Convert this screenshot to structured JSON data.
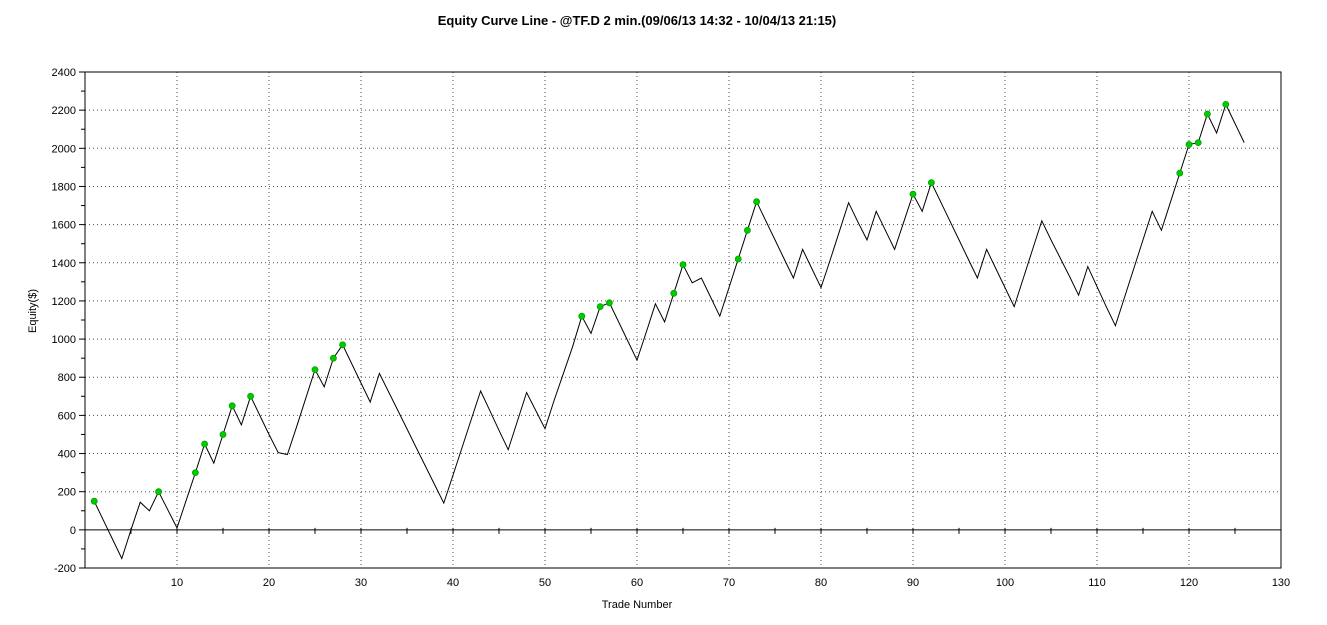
{
  "window": {
    "background": "#ffffff"
  },
  "chart_data": {
    "type": "line",
    "title": "Equity Curve Line - @TF.D 2 min.(09/06/13 14:32 - 10/04/13 21:15)",
    "xlabel": "Trade Number",
    "ylabel": "Equity($)",
    "xlim": [
      0,
      130
    ],
    "ylim": [
      -200,
      2400
    ],
    "x_ticks": [
      10,
      20,
      30,
      40,
      50,
      60,
      70,
      80,
      90,
      100,
      110,
      120,
      130
    ],
    "y_ticks": [
      2400,
      2200,
      2000,
      1800,
      1600,
      1400,
      1200,
      1000,
      800,
      600,
      400,
      200,
      0,
      -200
    ],
    "x_minor_tick_step": 5,
    "y_minor_tick_step": 100,
    "grid": true,
    "legend": false,
    "colors": {
      "line": "#000000",
      "marker_fill": "#00cc00",
      "marker_edge": "#00a000",
      "grid": "#4d4d4d",
      "axis": "#000000",
      "text": "#000000",
      "background": "#ffffff"
    },
    "series": [
      {
        "name": "equity",
        "first_trade": 1,
        "values": [
          150,
          50,
          -50,
          -150,
          0,
          145,
          100,
          200,
          105,
          10,
          155,
          300,
          450,
          350,
          500,
          650,
          550,
          700,
          600,
          500,
          405,
          395,
          540,
          690,
          840,
          750,
          900,
          970,
          870,
          770,
          670,
          820,
          723,
          626,
          529,
          431,
          334,
          237,
          140,
          287,
          434,
          581,
          728,
          625,
          522,
          420,
          570,
          720,
          625,
          530,
          680,
          820,
          960,
          1120,
          1030,
          1170,
          1190,
          1090,
          990,
          890,
          1035,
          1185,
          1090,
          1240,
          1390,
          1295,
          1320,
          1220,
          1120,
          1270,
          1420,
          1570,
          1720,
          1620,
          1520,
          1420,
          1320,
          1470,
          1370,
          1270,
          1415,
          1565,
          1715,
          1615,
          1520,
          1670,
          1570,
          1470,
          1615,
          1760,
          1670,
          1820,
          1720,
          1620,
          1520,
          1420,
          1320,
          1470,
          1370,
          1270,
          1170,
          1320,
          1470,
          1620,
          1520,
          1425,
          1330,
          1230,
          1380,
          1275,
          1170,
          1070,
          1220,
          1370,
          1520,
          1670,
          1570,
          1720,
          1870,
          2020,
          2030,
          2180,
          2080,
          2230,
          2130,
          2030
        ]
      }
    ],
    "new_high_trades": [
      1,
      8,
      12,
      13,
      15,
      16,
      18,
      25,
      27,
      28,
      54,
      56,
      57,
      64,
      65,
      71,
      72,
      73,
      90,
      92,
      119,
      120,
      121,
      122,
      124
    ]
  }
}
